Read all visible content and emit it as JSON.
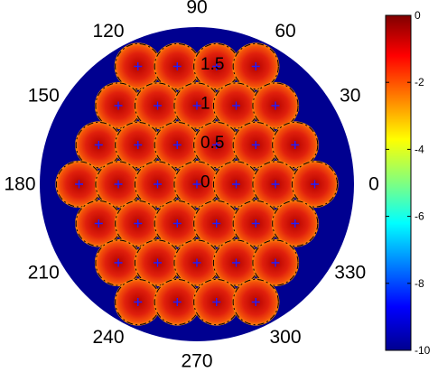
{
  "chart_data": {
    "type": "heatmap",
    "projection": "polar",
    "title": "",
    "angle_ticks": [
      "0",
      "30",
      "60",
      "90",
      "120",
      "150",
      "180",
      "210",
      "240",
      "270",
      "300",
      "330"
    ],
    "radial_ticks": [
      "0",
      "0.5",
      "1",
      "1.5"
    ],
    "rlim": [
      0,
      2
    ],
    "colormap": "jet",
    "clim": [
      -10,
      0
    ],
    "colorbar_ticks": [
      "0",
      "-2",
      "-4",
      "-6",
      "-8",
      "-10"
    ],
    "background_value": -10,
    "beam_peak_value": 0,
    "beam_edge_value": -4,
    "beam_rows": [
      {
        "y": 1.5,
        "x": [
          -0.75,
          -0.25,
          0.25,
          0.75
        ]
      },
      {
        "y": 1.0,
        "x": [
          -1.0,
          -0.5,
          0.0,
          0.5,
          1.0
        ]
      },
      {
        "y": 0.5,
        "x": [
          -1.25,
          -0.75,
          -0.25,
          0.25,
          0.75,
          1.25
        ]
      },
      {
        "y": 0.0,
        "x": [
          -1.5,
          -1.0,
          -0.5,
          0.0,
          0.5,
          1.0,
          1.5
        ]
      },
      {
        "y": -0.5,
        "x": [
          -1.25,
          -0.75,
          -0.25,
          0.25,
          0.75,
          1.25
        ]
      },
      {
        "y": -1.0,
        "x": [
          -1.0,
          -0.5,
          0.0,
          0.5,
          1.0
        ]
      },
      {
        "y": -1.5,
        "x": [
          -0.75,
          -0.25,
          0.25,
          0.75
        ]
      }
    ],
    "beam_radius": 0.3,
    "grid": false,
    "legend": "none"
  }
}
